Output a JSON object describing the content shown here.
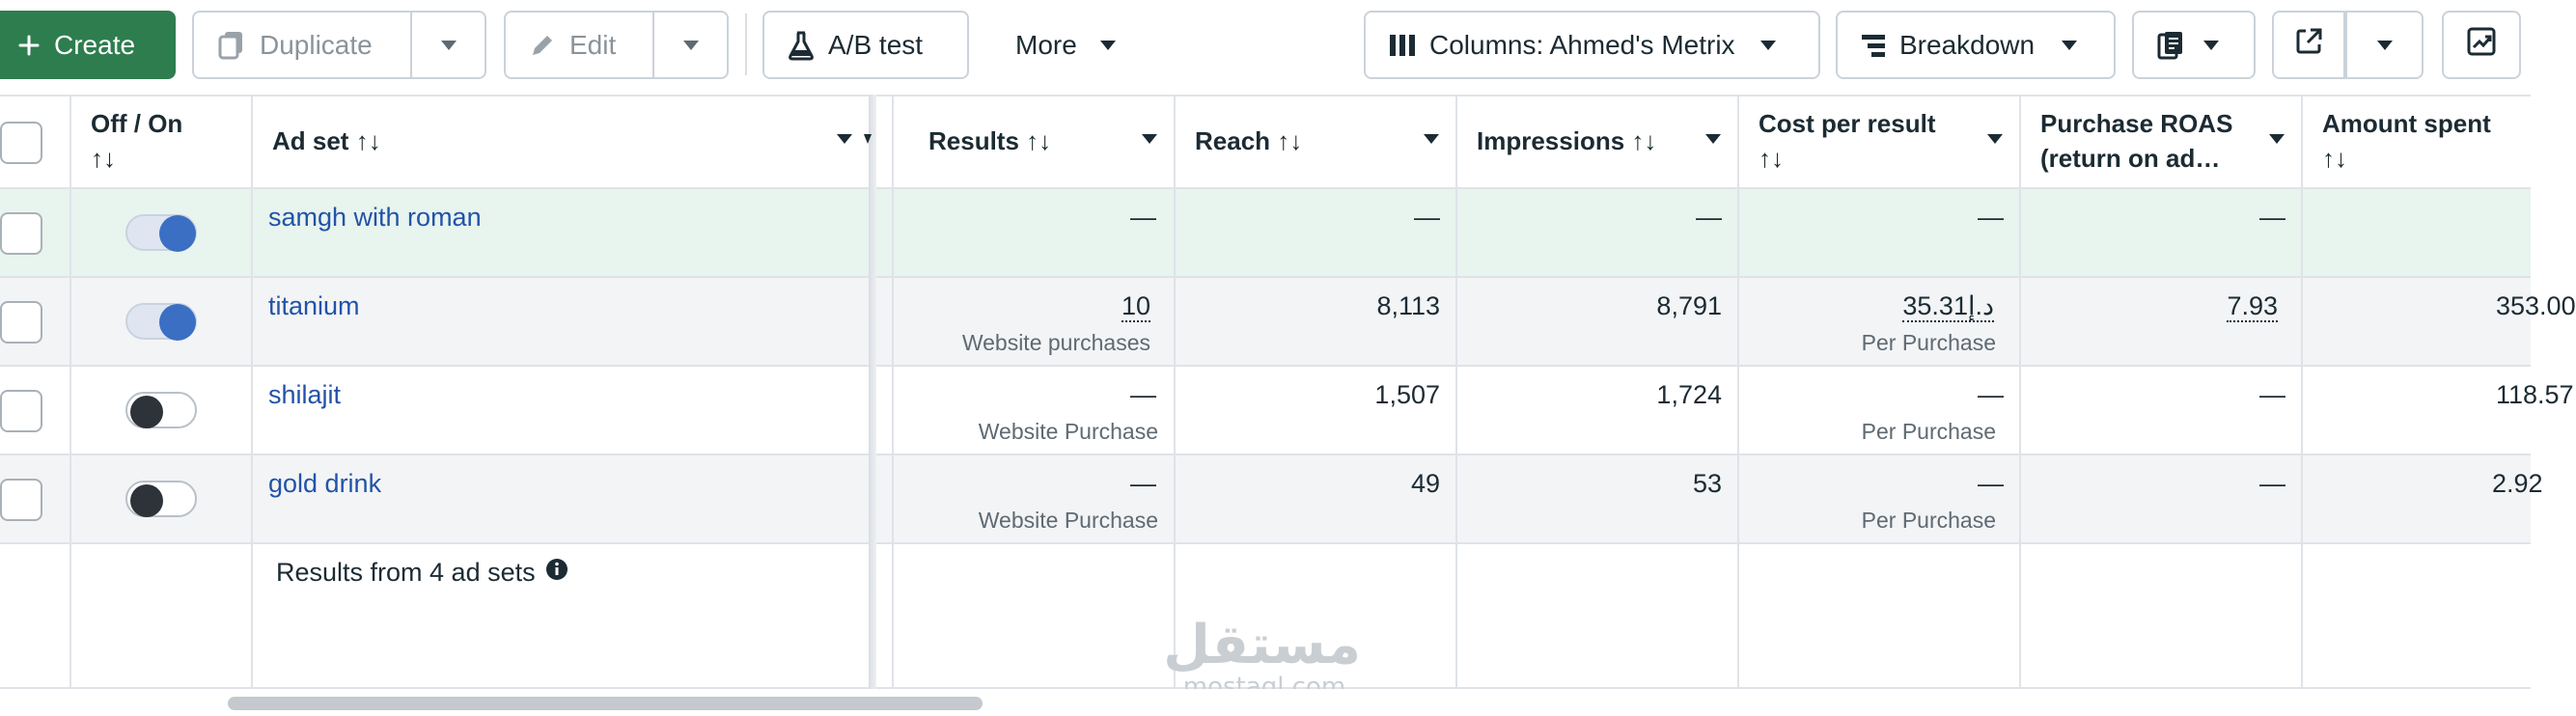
{
  "toolbar": {
    "create_label": "Create",
    "duplicate_label": "Duplicate",
    "edit_label": "Edit",
    "ab_test_label": "A/B test",
    "more_label": "More",
    "columns_label": "Columns: Ahmed's Metrix",
    "breakdown_label": "Breakdown"
  },
  "table": {
    "headers": {
      "off_on": "Off / On",
      "ad_set": "Ad set",
      "results": "Results",
      "reach": "Reach",
      "impressions": "Impressions",
      "cost_per_result": "Cost per result",
      "purchase_roas_line1": "Purchase ROAS",
      "purchase_roas_line2": "(return on ad…",
      "amount_spent": "Amount spent",
      "sort_glyph": "↑↓"
    },
    "rows": [
      {
        "name": "samgh with roman",
        "on": true,
        "results": "—",
        "results_sub": "",
        "reach": "—",
        "impressions": "—",
        "cost": "—",
        "cost_sub": "",
        "roas": "—",
        "spent": ""
      },
      {
        "name": "titanium",
        "on": true,
        "results": "10",
        "results_sub": "Website purchases",
        "reach": "8,113",
        "impressions": "8,791",
        "cost": "35.31د.إ",
        "cost_sub": "Per Purchase",
        "roas": "7.93",
        "spent": "353.00"
      },
      {
        "name": "shilajit",
        "on": false,
        "results": "—",
        "results_sub": "Website Purchase",
        "reach": "1,507",
        "impressions": "1,724",
        "cost": "—",
        "cost_sub": "Per Purchase",
        "roas": "—",
        "spent": "118.57"
      },
      {
        "name": "gold drink",
        "on": false,
        "results": "—",
        "results_sub": "Website Purchase",
        "reach": "49",
        "impressions": "53",
        "cost": "—",
        "cost_sub": "Per Purchase",
        "roas": "—",
        "spent": "2.92"
      }
    ],
    "footer": "Results from 4 ad sets"
  },
  "watermark": {
    "arabic": "مستقل",
    "latin": "mostaql.com"
  },
  "colors": {
    "create_bg": "#2e7d4f",
    "toggle_on": "#3a6fc4",
    "link": "#2253a8",
    "selected_row": "#e8f4ee",
    "alt_row": "#f3f4f6"
  }
}
